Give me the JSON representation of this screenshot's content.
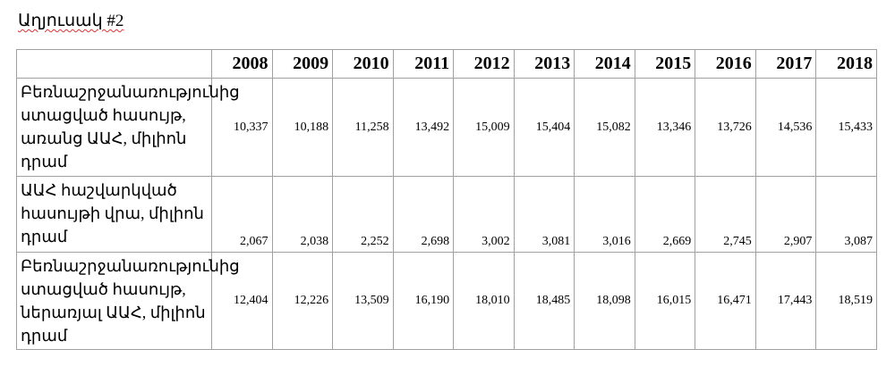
{
  "title": "Աղյուսակ #2",
  "table": {
    "header": [
      "",
      "2008",
      "2009",
      "2010",
      "2011",
      "2012",
      "2013",
      "2014",
      "2015",
      "2016",
      "2017",
      "2018"
    ],
    "rows": [
      [
        "Բեռնաշրջանառությունից ստացված հասույթ, առանց ԱԱՀ, միլիոն դրամ",
        "10,337",
        "10,188",
        "11,258",
        "13,492",
        "15,009",
        "15,404",
        "15,082",
        "13,346",
        "13,726",
        "14,536",
        "15,433"
      ],
      [
        "ԱԱՀ հաշվարկված հասույթի վրա, միլիոն դրամ",
        "2,067",
        "2,038",
        "2,252",
        "2,698",
        "3,002",
        "3,081",
        "3,016",
        "2,669",
        "2,745",
        "2,907",
        "3,087"
      ],
      [
        "Բեռնաշրջանառությունից ստացված հասույթ, ներառյալ ԱԱՀ, միլիոն դրամ",
        "12,404",
        "12,226",
        "13,509",
        "16,190",
        "18,010",
        "18,485",
        "18,098",
        "16,015",
        "16,471",
        "17,443",
        "18,519"
      ]
    ]
  }
}
